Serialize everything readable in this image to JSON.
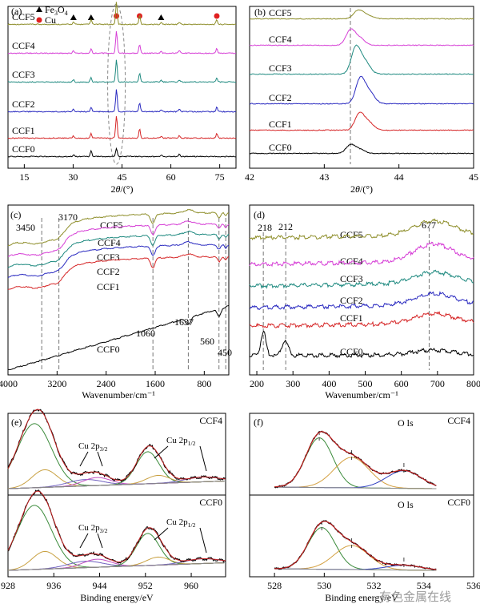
{
  "watermark": "有色金属在线",
  "colors": {
    "CCF0": "#000000",
    "CCF1": "#d62728",
    "CCF2": "#2a2ac0",
    "CCF3": "#1f8a80",
    "CCF4": "#d63fd6",
    "CCF5": "#8e8e2a"
  },
  "chart_data": [
    {
      "id": "a",
      "type": "line",
      "panel_label": "(a)",
      "xlabel": "2θ/(°)",
      "xlim": [
        10,
        80
      ],
      "xticks": [
        15,
        30,
        45,
        60,
        75
      ],
      "legend": [
        {
          "marker": "triangle",
          "label": "Fe3O4"
        },
        {
          "marker": "circle",
          "label": "Cu"
        }
      ],
      "peak_markers": {
        "Fe3O4": [
          30.1,
          35.5,
          57.0
        ],
        "Cu": [
          43.3,
          50.4,
          74.1
        ]
      },
      "series": [
        {
          "name": "CCF5",
          "peaks": [
            [
              30.1,
              0.1
            ],
            [
              35.5,
              0.2
            ],
            [
              43.3,
              1.0
            ],
            [
              50.4,
              0.4
            ],
            [
              57.0,
              0.08
            ],
            [
              62.6,
              0.1
            ],
            [
              74.1,
              0.2
            ]
          ]
        },
        {
          "name": "CCF4",
          "peaks": [
            [
              30.1,
              0.1
            ],
            [
              35.5,
              0.2
            ],
            [
              43.3,
              1.0
            ],
            [
              50.4,
              0.4
            ],
            [
              57.0,
              0.08
            ],
            [
              62.6,
              0.1
            ],
            [
              74.1,
              0.2
            ]
          ]
        },
        {
          "name": "CCF3",
          "peaks": [
            [
              30.1,
              0.1
            ],
            [
              35.5,
              0.2
            ],
            [
              43.3,
              1.0
            ],
            [
              50.4,
              0.4
            ],
            [
              57.0,
              0.08
            ],
            [
              62.6,
              0.1
            ],
            [
              74.1,
              0.2
            ]
          ]
        },
        {
          "name": "CCF2",
          "peaks": [
            [
              30.1,
              0.1
            ],
            [
              35.5,
              0.2
            ],
            [
              43.3,
              1.0
            ],
            [
              50.4,
              0.4
            ],
            [
              57.0,
              0.08
            ],
            [
              62.6,
              0.1
            ],
            [
              74.1,
              0.2
            ]
          ]
        },
        {
          "name": "CCF1",
          "peaks": [
            [
              30.1,
              0.1
            ],
            [
              35.5,
              0.2
            ],
            [
              43.3,
              1.0
            ],
            [
              50.4,
              0.4
            ],
            [
              57.0,
              0.08
            ],
            [
              62.6,
              0.1
            ],
            [
              74.1,
              0.2
            ]
          ]
        },
        {
          "name": "CCF0",
          "peaks": [
            [
              30.1,
              0.12
            ],
            [
              35.5,
              0.4
            ],
            [
              43.3,
              0.6
            ],
            [
              57.0,
              0.1
            ],
            [
              62.6,
              0.15
            ]
          ]
        }
      ]
    },
    {
      "id": "b",
      "type": "line",
      "panel_label": "(b)",
      "xlabel": "2θ/(°)",
      "xlim": [
        42,
        45
      ],
      "xticks": [
        42,
        43,
        44,
        45
      ],
      "reference_line": 43.35,
      "series": [
        {
          "name": "CCF5",
          "peak_center": 43.45
        },
        {
          "name": "CCF4",
          "peak_center": 43.35
        },
        {
          "name": "CCF3",
          "peak_center": 43.42
        },
        {
          "name": "CCF2",
          "peak_center": 43.48
        },
        {
          "name": "CCF1",
          "peak_center": 43.47
        },
        {
          "name": "CCF0",
          "peak_center": 43.35
        }
      ]
    },
    {
      "id": "c",
      "type": "line",
      "panel_label": "(c)",
      "xlabel": "Wavenumber/cm⁻¹",
      "xlim": [
        4000,
        400
      ],
      "xticks": [
        4000,
        3200,
        2400,
        1600,
        800
      ],
      "band_labels": [
        {
          "text": "3450",
          "x": 3450
        },
        {
          "text": "3170",
          "x": 3170
        },
        {
          "text": "1060",
          "x": 1060
        },
        {
          "text": "1637",
          "x": 1637
        },
        {
          "text": "560",
          "x": 560
        },
        {
          "text": "450",
          "x": 450
        }
      ],
      "series": [
        {
          "name": "CCF5"
        },
        {
          "name": "CCF4"
        },
        {
          "name": "CCF3"
        },
        {
          "name": "CCF2"
        },
        {
          "name": "CCF1"
        },
        {
          "name": "CCF0"
        }
      ]
    },
    {
      "id": "d",
      "type": "line",
      "panel_label": "(d)",
      "xlabel": "Wavenumber/cm⁻¹",
      "xlim": [
        180,
        800
      ],
      "xticks": [
        200,
        300,
        400,
        500,
        600,
        700,
        800
      ],
      "band_labels": [
        {
          "text": "218",
          "x": 218
        },
        {
          "text": "212",
          "x": 280
        },
        {
          "text": "677",
          "x": 677
        }
      ],
      "series": [
        {
          "name": "CCF5"
        },
        {
          "name": "CCF4"
        },
        {
          "name": "CCF3"
        },
        {
          "name": "CCF2"
        },
        {
          "name": "CCF1"
        },
        {
          "name": "CCF0"
        }
      ]
    },
    {
      "id": "e",
      "type": "line",
      "panel_label": "(e)",
      "xlabel": "Binding energy/eV",
      "xlim": [
        928,
        966
      ],
      "xticks": [
        928,
        936,
        944,
        952,
        960
      ],
      "subpanels": [
        {
          "name": "CCF4",
          "labels": [
            "Cu 2p3/2",
            "Cu 2p1/2"
          ]
        },
        {
          "name": "CCF0",
          "labels": [
            "Cu 2p3/2",
            "Cu 2p1/2"
          ]
        }
      ]
    },
    {
      "id": "f",
      "type": "line",
      "panel_label": "(f)",
      "xlabel": "Binding energy/eV",
      "xlim": [
        527,
        536
      ],
      "xticks": [
        528,
        530,
        532,
        534,
        536
      ],
      "subpanels": [
        {
          "name": "CCF4",
          "label": "O ls",
          "components": [
            529.8,
            531.1,
            533.2
          ]
        },
        {
          "name": "CCF0",
          "label": "O ls",
          "components": [
            529.9,
            531.1,
            533.2
          ]
        }
      ]
    }
  ]
}
